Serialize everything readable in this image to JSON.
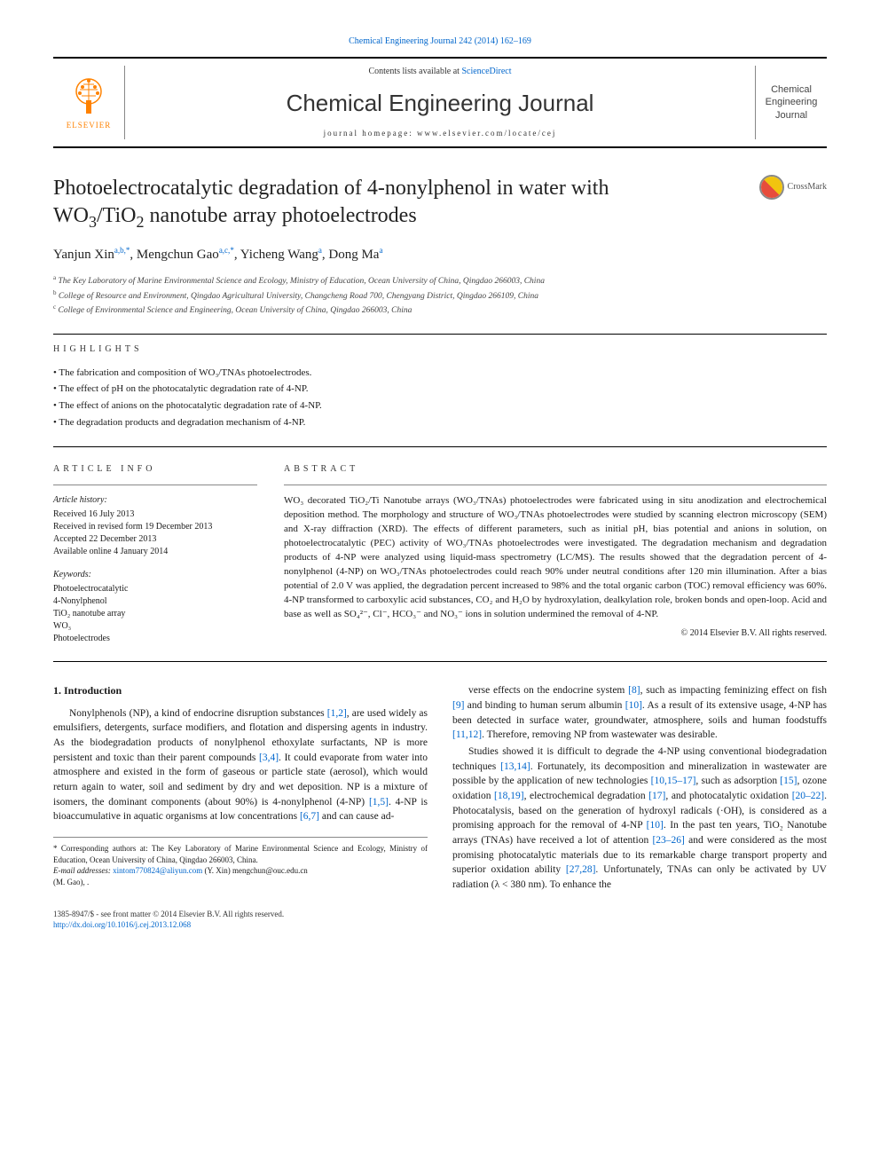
{
  "colors": {
    "link": "#0066cc",
    "accent": "#ff8200",
    "text": "#1a1a1a",
    "rule": "#000000"
  },
  "header": {
    "citation_link": "Chemical Engineering Journal 242 (2014) 162–169",
    "contents_prefix": "Contents lists available at ",
    "contents_link": "ScienceDirect",
    "journal_name": "Chemical Engineering Journal",
    "homepage_prefix": "journal homepage: ",
    "homepage": "www.elsevier.com/locate/cej",
    "publisher_word": "ELSEVIER",
    "cover_text": "Chemical Engineering Journal"
  },
  "article": {
    "title_line1": "Photoelectrocatalytic degradation of 4-nonylphenol in water with",
    "title_line2_prefix": "WO",
    "title_line2_sub1": "3",
    "title_line2_mid": "/TiO",
    "title_line2_sub2": "2",
    "title_line2_suffix": " nanotube array photoelectrodes",
    "crossmark": "CrossMark"
  },
  "authors": {
    "a1_name": "Yanjun Xin",
    "a1_aff": "a,b,",
    "a1_star": "*",
    "a2_name": "Mengchun Gao",
    "a2_aff": "a,c,",
    "a2_star": "*",
    "a3_name": "Yicheng Wang",
    "a3_aff": "a",
    "a4_name": "Dong Ma",
    "a4_aff": "a"
  },
  "affiliations": {
    "a": "The Key Laboratory of Marine Environmental Science and Ecology, Ministry of Education, Ocean University of China, Qingdao 266003, China",
    "b": "College of Resource and Environment, Qingdao Agricultural University, Changcheng Road 700, Chengyang District, Qingdao 266109, China",
    "c": "College of Environmental Science and Engineering, Ocean University of China, Qingdao 266003, China"
  },
  "highlights": {
    "heading": "HIGHLIGHTS",
    "items": [
      "The fabrication and composition of WO₃/TNAs photoelectrodes.",
      "The effect of pH on the photocatalytic degradation rate of 4-NP.",
      "The effect of anions on the photocatalytic degradation rate of 4-NP.",
      "The degradation products and degradation mechanism of 4-NP."
    ]
  },
  "info": {
    "heading": "ARTICLE INFO",
    "history_head": "Article history:",
    "history": [
      "Received 16 July 2013",
      "Received in revised form 19 December 2013",
      "Accepted 22 December 2013",
      "Available online 4 January 2014"
    ],
    "keywords_head": "Keywords:",
    "keywords": [
      "Photoelectrocatalytic",
      "4-Nonylphenol",
      "TiO₂ nanotube array",
      "WO₃",
      "Photoelectrodes"
    ]
  },
  "abstract": {
    "heading": "ABSTRACT",
    "text": "WO₃ decorated TiO₂/Ti Nanotube arrays (WO₃/TNAs) photoelectrodes were fabricated using in situ anodization and electrochemical deposition method. The morphology and structure of WO₃/TNAs photoelectrodes were studied by scanning electron microscopy (SEM) and X-ray diffraction (XRD). The effects of different parameters, such as initial pH, bias potential and anions in solution, on photoelectrocatalytic (PEC) activity of WO₃/TNAs photoelectrodes were investigated. The degradation mechanism and degradation products of 4-NP were analyzed using liquid-mass spectrometry (LC/MS). The results showed that the degradation percent of 4-nonylphenol (4-NP) on WO₃/TNAs photoelectrodes could reach 90% under neutral conditions after 120 min illumination. After a bias potential of 2.0 V was applied, the degradation percent increased to 98% and the total organic carbon (TOC) removal efficiency was 60%. 4-NP transformed to carboxylic acid substances, CO₂ and H₂O by hydroxylation, dealkylation role, broken bonds and open-loop. Acid and base as well as SO₄²⁻, Cl⁻, HCO₃⁻ and NO₃⁻ ions in solution undermined the removal of 4-NP.",
    "copyright": "© 2014 Elsevier B.V. All rights reserved."
  },
  "body": {
    "heading": "1. Introduction",
    "p1": "Nonylphenols (NP), a kind of endocrine disruption substances [1,2], are used widely as emulsifiers, detergents, surface modifiers, and flotation and dispersing agents in industry. As the biodegradation products of nonylphenol ethoxylate surfactants, NP is more persistent and toxic than their parent compounds [3,4]. It could evaporate from water into atmosphere and existed in the form of gaseous or particle state (aerosol), which would return again to water, soil and sediment by dry and wet deposition. NP is a mixture of isomers, the dominant components (about 90%) is 4-nonylphenol (4-NP) [1,5]. 4-NP is bioaccumulative in aquatic organisms at low concentrations [6,7] and can cause ad-",
    "p2": "verse effects on the endocrine system [8], such as impacting feminizing effect on fish [9] and binding to human serum albumin [10]. As a result of its extensive usage, 4-NP has been detected in surface water, groundwater, atmosphere, soils and human foodstuffs [11,12]. Therefore, removing NP from wastewater was desirable.",
    "p3": "Studies showed it is difficult to degrade the 4-NP using conventional biodegradation techniques [13,14]. Fortunately, its decomposition and mineralization in wastewater are possible by the application of new technologies [10,15–17], such as adsorption [15], ozone oxidation [18,19], electrochemical degradation [17], and photocatalytic oxidation [20–22]. Photocatalysis, based on the generation of hydroxyl radicals (·OH), is considered as a promising approach for the removal of 4-NP [10]. In the past ten years, TiO₂ Nanotube arrays (TNAs) have received a lot of attention [23–26] and were considered as the most promising photocatalytic materials due to its remarkable charge transport property and superior oxidation ability [27,28]. Unfortunately, TNAs can only be activated by UV radiation (λ < 380 nm). To enhance the"
  },
  "footnote": {
    "corr_label": "* Corresponding authors at: ",
    "corr_text": "The Key Laboratory of Marine Environmental Science and Ecology, Ministry of Education, Ocean University of China, Qingdao 266003, China.",
    "email_label": "E-mail addresses: ",
    "email1": "xintom770824@aliyun.com",
    "email1_who": " (Y. Xin) ",
    "email2": "mengchun@ouc.edu.cn",
    "email2_who": "(M. Gao), ."
  },
  "footer": {
    "issn": "1385-8947/$ - see front matter © 2014 Elsevier B.V. All rights reserved.",
    "doi": "http://dx.doi.org/10.1016/j.cej.2013.12.068"
  }
}
